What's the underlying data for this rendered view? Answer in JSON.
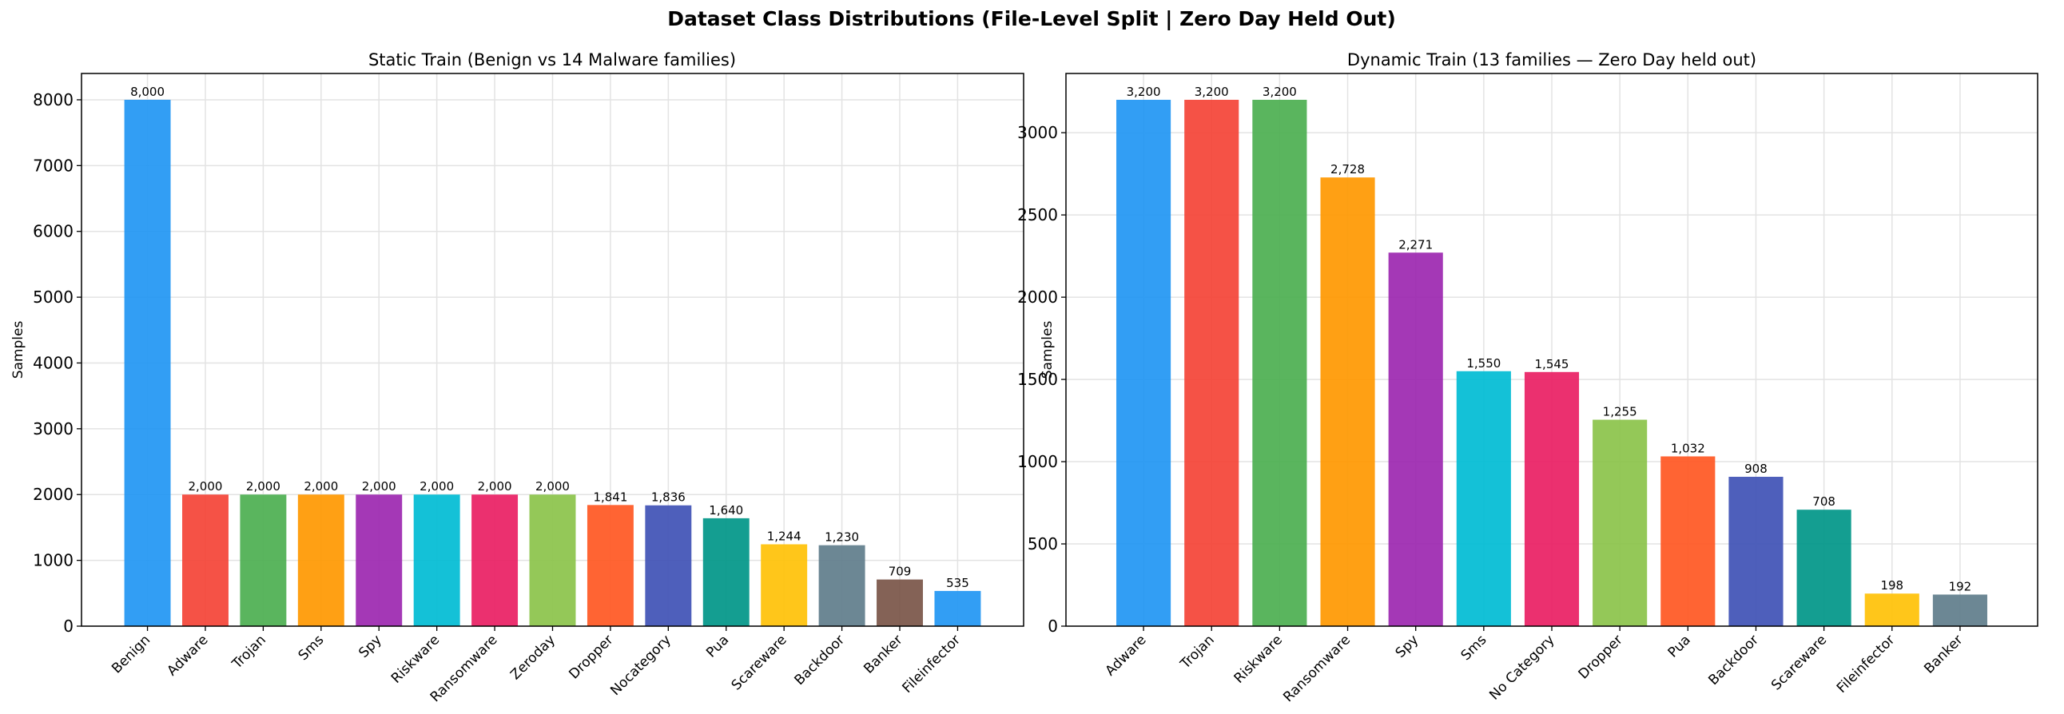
{
  "title": "Dataset Class Distributions (File-Level Split | Zero Day Held Out)",
  "chart_data": [
    {
      "type": "bar",
      "title": "Static Train (Benign vs 14 Malware families)",
      "xlabel": "",
      "ylabel": "Samples",
      "ylim": [
        0,
        8400
      ],
      "yticks": [
        0,
        1000,
        2000,
        3000,
        4000,
        5000,
        6000,
        7000,
        8000
      ],
      "grid": true,
      "categories": [
        "Benign",
        "Adware",
        "Trojan",
        "Sms",
        "Spy",
        "Riskware",
        "Ransomware",
        "Zeroday",
        "Dropper",
        "Nocategory",
        "Pua",
        "Scareware",
        "Backdoor",
        "Banker",
        "Fileinfector"
      ],
      "values": [
        8000,
        2000,
        2000,
        2000,
        2000,
        2000,
        2000,
        2000,
        1841,
        1836,
        1640,
        1244,
        1230,
        709,
        535
      ],
      "data_labels": [
        "8,000",
        "2,000",
        "2,000",
        "2,000",
        "2,000",
        "2,000",
        "2,000",
        "2,000",
        "1,841",
        "1,836",
        "1,640",
        "1,244",
        "1,230",
        "709",
        "535"
      ],
      "colors": [
        "#2196F3",
        "#F44336",
        "#4CAF50",
        "#FF9800",
        "#9C27B0",
        "#00BCD4",
        "#E91E63",
        "#8BC34A",
        "#FF5722",
        "#3F51B5",
        "#009688",
        "#FFC107",
        "#607D8B",
        "#795548",
        "#2196F3"
      ]
    },
    {
      "type": "bar",
      "title": "Dynamic Train (13 families — Zero Day held out)",
      "xlabel": "",
      "ylabel": "Samples",
      "ylim": [
        0,
        3360
      ],
      "yticks": [
        0,
        500,
        1000,
        1500,
        2000,
        2500,
        3000
      ],
      "grid": true,
      "categories": [
        "Adware",
        "Trojan",
        "Riskware",
        "Ransomware",
        "Spy",
        "Sms",
        "No Category",
        "Dropper",
        "Pua",
        "Backdoor",
        "Scareware",
        "Fileinfector",
        "Banker"
      ],
      "values": [
        3200,
        3200,
        3200,
        2728,
        2271,
        1550,
        1545,
        1255,
        1032,
        908,
        708,
        198,
        192
      ],
      "data_labels": [
        "3,200",
        "3,200",
        "3,200",
        "2,728",
        "2,271",
        "1,550",
        "1,545",
        "1,255",
        "1,032",
        "908",
        "708",
        "198",
        "192"
      ],
      "colors": [
        "#2196F3",
        "#F44336",
        "#4CAF50",
        "#FF9800",
        "#9C27B0",
        "#00BCD4",
        "#E91E63",
        "#8BC34A",
        "#FF5722",
        "#3F51B5",
        "#009688",
        "#FFC107",
        "#607D8B"
      ]
    }
  ]
}
